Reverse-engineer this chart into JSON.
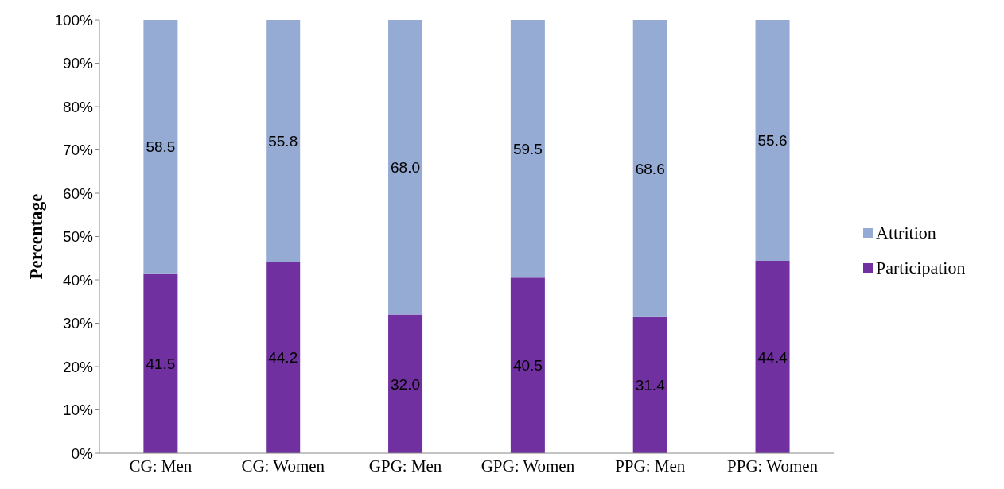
{
  "chart_data": {
    "type": "bar",
    "stacked": true,
    "ylabel": "Percentage",
    "categories": [
      "CG: Men",
      "CG: Women",
      "GPG: Men",
      "GPG: Women",
      "PPG: Men",
      "PPG: Women"
    ],
    "series": [
      {
        "name": "Participation",
        "color": "#7030a0",
        "values": [
          41.5,
          44.2,
          32.0,
          40.5,
          31.4,
          44.4
        ],
        "value_labels": [
          "41.5",
          "44.2",
          "32.0",
          "40.5",
          "31.4",
          "44.4"
        ]
      },
      {
        "name": "Attrition",
        "color": "#95abd3",
        "values": [
          58.5,
          55.8,
          68.0,
          59.5,
          68.6,
          55.6
        ],
        "value_labels": [
          "58.5",
          "55.8",
          "68.0",
          "59.5",
          "68.6",
          "55.6"
        ]
      }
    ],
    "ylim": [
      0,
      100
    ],
    "yticks": [
      {
        "value": 0,
        "label": "0%"
      },
      {
        "value": 10,
        "label": "10%"
      },
      {
        "value": 20,
        "label": "20%"
      },
      {
        "value": 30,
        "label": "30%"
      },
      {
        "value": 40,
        "label": "40%"
      },
      {
        "value": 50,
        "label": "50%"
      },
      {
        "value": 60,
        "label": "60%"
      },
      {
        "value": 70,
        "label": "70%"
      },
      {
        "value": 80,
        "label": "80%"
      },
      {
        "value": 90,
        "label": "90%"
      },
      {
        "value": 100,
        "label": "100%"
      }
    ],
    "grid": false,
    "legend": "right"
  }
}
